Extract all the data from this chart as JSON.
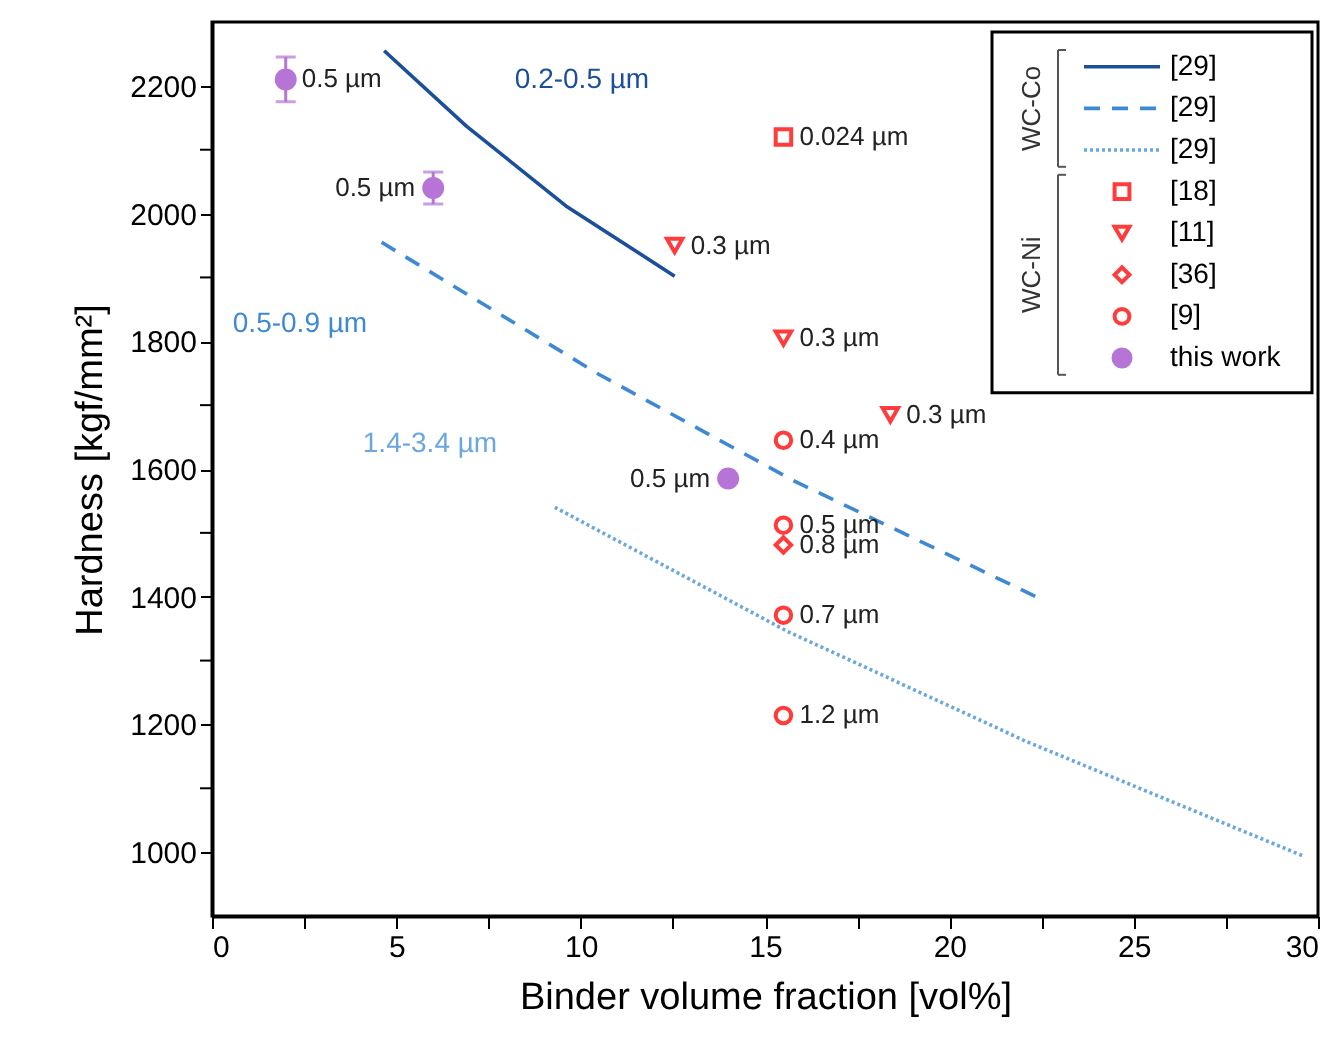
{
  "chart_data": {
    "type": "scatter",
    "xlabel": "Binder volume fraction [vol%]",
    "ylabel": "Hardness [kgf/mm²]",
    "xlim": [
      0,
      30
    ],
    "ylim": [
      900,
      2300
    ],
    "xticks": [
      0,
      {
        "value": 2.5,
        "label": null
      },
      5,
      {
        "value": 7.5,
        "label": null
      },
      10,
      {
        "value": 12.5,
        "label": null
      },
      15,
      {
        "value": 17.5,
        "label": null
      },
      20,
      {
        "value": 22.5,
        "label": null
      },
      25,
      {
        "value": 27.5,
        "label": null
      },
      30
    ],
    "yticks": [
      1000,
      {
        "value": 1100,
        "label": null
      },
      1200,
      {
        "value": 1300,
        "label": null
      },
      1400,
      {
        "value": 1500,
        "label": null
      },
      1600,
      {
        "value": 1700,
        "label": null
      },
      1800,
      {
        "value": 1900,
        "label": null
      },
      2000,
      {
        "value": 2100,
        "label": null
      },
      2200
    ],
    "grid": false,
    "legend": "top right",
    "series": [
      {
        "name": "[29]",
        "type": "line",
        "line_style": "solid",
        "color": "#1c4f9a",
        "x": [
          4.67,
          6.9,
          9.6,
          12.55
        ],
        "values": [
          2255,
          2137,
          2012,
          1902
        ]
      },
      {
        "name": "[29]",
        "type": "line",
        "line_style": "dashed",
        "color": "#3f89d4",
        "x": [
          4.6,
          10.5,
          15.8,
          22.5
        ],
        "values": [
          1955,
          1748,
          1581,
          1396
        ]
      },
      {
        "name": "[29]",
        "type": "line",
        "line_style": "dotted",
        "color": "#6aa6e0",
        "x": [
          9.3,
          15.6,
          22.1,
          29.6
        ],
        "values": [
          1540,
          1346,
          1173,
          994
        ]
      },
      {
        "name": "[18]",
        "marker": "square",
        "color": "#ff3b3b",
        "x": [
          15.5
        ],
        "values": [
          2120
        ]
      },
      {
        "name": "[11]",
        "marker": "triangle-down",
        "color": "#ff3b3b",
        "x": [
          12.55,
          15.5,
          18.4
        ],
        "values": [
          1950,
          1805,
          1685
        ]
      },
      {
        "name": "[36]",
        "marker": "diamond",
        "color": "#ff3b3b",
        "x": [
          15.5
        ],
        "values": [
          1481
        ]
      },
      {
        "name": "[9]",
        "marker": "circle",
        "color": "#ff3b3b",
        "x": [
          15.5,
          15.5,
          15.5,
          15.5
        ],
        "values": [
          1645,
          1512,
          1371,
          1214
        ]
      },
      {
        "name": "this work",
        "marker": "circle",
        "color": "#b574d6",
        "x": [
          2,
          6,
          14
        ],
        "values": [
          2210,
          2040,
          1585
        ],
        "errors": [
          35,
          25,
          null
        ]
      }
    ],
    "annotations": [
      {
        "text": "0.024 µm",
        "x": 15.5,
        "y": 2120
      },
      {
        "text": "0.3 µm",
        "x": 12.55,
        "y": 1950
      },
      {
        "text": "0.3 µm",
        "x": 15.5,
        "y": 1805
      },
      {
        "text": "0.3 µm",
        "x": 18.4,
        "y": 1685
      },
      {
        "text": "0.8 µm",
        "x": 15.5,
        "y": 1481
      },
      {
        "text": "0.4 µm",
        "x": 15.5,
        "y": 1645
      },
      {
        "text": "0.5 µm",
        "x": 15.5,
        "y": 1512
      },
      {
        "text": "0.7 µm",
        "x": 15.5,
        "y": 1371
      },
      {
        "text": "1.2 µm",
        "x": 15.5,
        "y": 1214
      },
      {
        "text": "0.5 µm",
        "x": 2,
        "y": 2210
      },
      {
        "text": "0.5 µm",
        "x": 6,
        "y": 2040
      },
      {
        "text": "0.5 µm",
        "x": 14,
        "y": 1585
      },
      "0.2-0.5 µm",
      "0.5-0.9 µm",
      "1.4-3.4 µm",
      "WC-Co",
      "WC-Ni"
    ]
  }
}
